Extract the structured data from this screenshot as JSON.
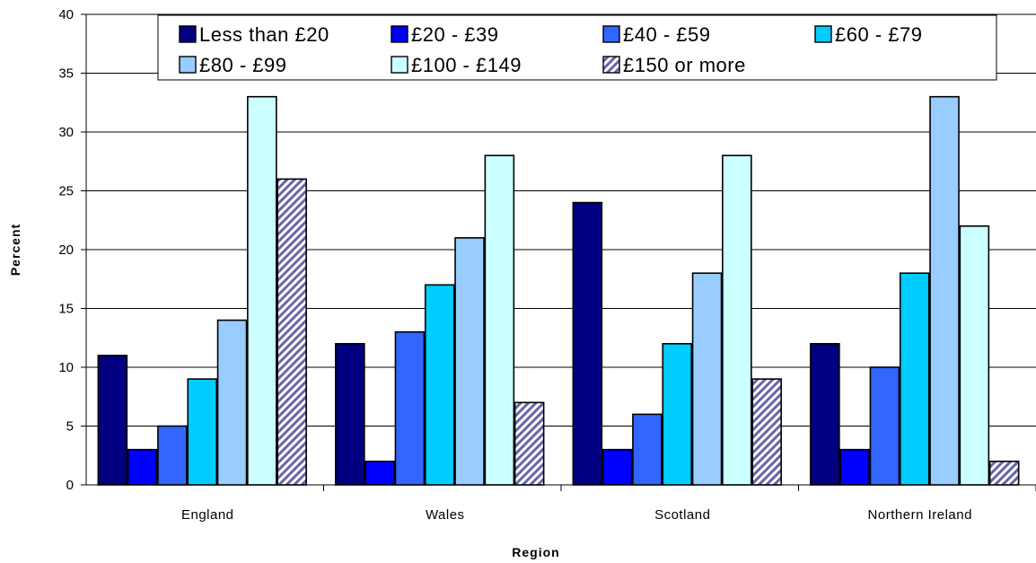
{
  "chart_data": {
    "type": "bar",
    "categories": [
      "England",
      "Wales",
      "Scotland",
      "Northern Ireland"
    ],
    "series": [
      {
        "name": "Less than £20",
        "values": [
          11,
          12,
          24,
          12
        ],
        "color": "#000080"
      },
      {
        "name": "£20 - £39",
        "values": [
          3,
          2,
          3,
          3
        ],
        "color": "#0000FF"
      },
      {
        "name": "£40 - £59",
        "values": [
          5,
          13,
          6,
          10
        ],
        "color": "#3366FF"
      },
      {
        "name": "£60 - £79",
        "values": [
          9,
          17,
          12,
          18
        ],
        "color": "#00CCFF"
      },
      {
        "name": "£80 - £99",
        "values": [
          14,
          21,
          18,
          33
        ],
        "color": "#99CCFF"
      },
      {
        "name": "£100 - £149",
        "values": [
          33,
          28,
          28,
          22
        ],
        "color": "#CCFFFF"
      },
      {
        "name": "£150 or more",
        "values": [
          26,
          7,
          9,
          2
        ],
        "color": "#9999CC",
        "pattern": "diagonal-hatch"
      }
    ],
    "xlabel": "Region",
    "ylabel": "Percent",
    "ylim": [
      0,
      40
    ],
    "yticks": [
      0,
      5,
      10,
      15,
      20,
      25,
      30,
      35,
      40
    ],
    "grid": true,
    "legend_placement": "top"
  }
}
